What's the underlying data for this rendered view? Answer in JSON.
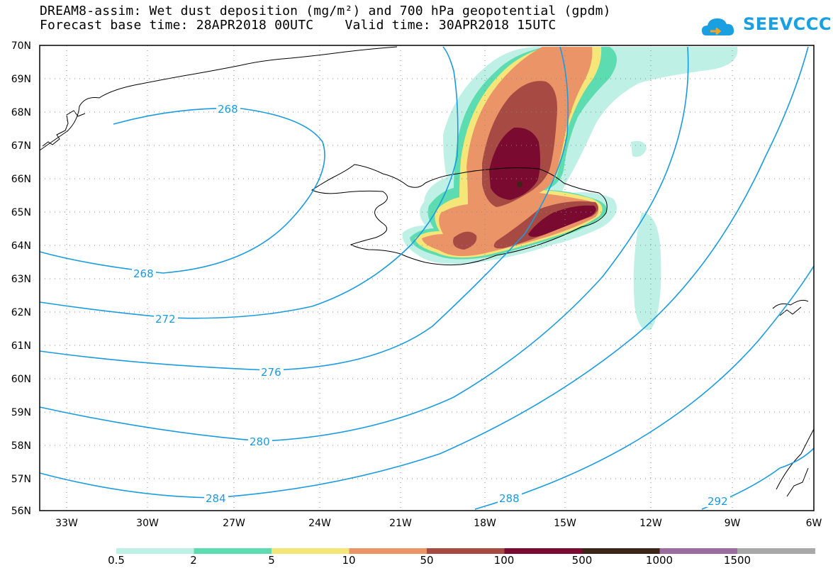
{
  "title": {
    "line1": "DREAM8-assim: Wet dust deposition (mg/m²) and 700 hPa geopotential (gpdm)",
    "line2": "Forecast base time: 28APR2018 00UTC    Valid time: 30APR2018 15UTC"
  },
  "logo": {
    "text": "SEEVCCC",
    "color": "#1aa0e0"
  },
  "axes": {
    "lat_labels": [
      "70N",
      "69N",
      "68N",
      "67N",
      "66N",
      "65N",
      "64N",
      "63N",
      "62N",
      "61N",
      "60N",
      "59N",
      "58N",
      "57N",
      "56N"
    ],
    "lon_labels": [
      "33W",
      "30W",
      "27W",
      "24W",
      "21W",
      "18W",
      "15W",
      "12W",
      "9W",
      "6W"
    ]
  },
  "contours": {
    "color": "#1a9be0",
    "labels": [
      "268",
      "268",
      "272",
      "276",
      "280",
      "284",
      "288",
      "292"
    ]
  },
  "colorbar": {
    "colors": [
      "#bff0e6",
      "#5cdcb0",
      "#f5e67a",
      "#eb9468",
      "#a84a44",
      "#7a0a30",
      "#3c2418",
      "#9a6ca0",
      "#a8a8a8"
    ],
    "labels": [
      "0.5",
      "2",
      "5",
      "10",
      "50",
      "100",
      "500",
      "1000",
      "1500"
    ]
  },
  "dust_colors": {
    "light": "#bff0e6",
    "green": "#5cdcb0",
    "yellow": "#f5e67a",
    "orange": "#eb9468",
    "brown": "#a84a44",
    "maroon": "#7a0a30",
    "dark": "#3c2418"
  }
}
